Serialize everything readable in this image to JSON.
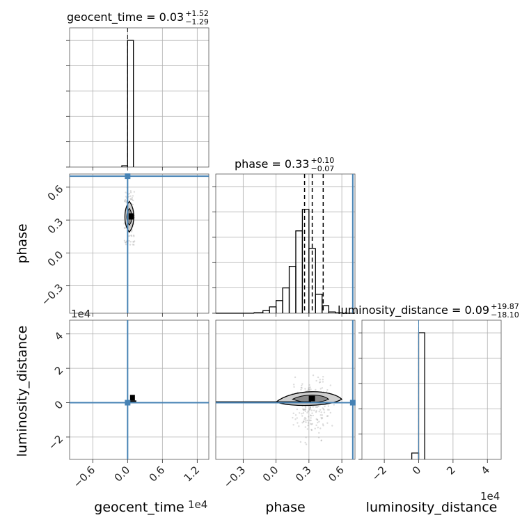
{
  "chart_data": {
    "type": "corner",
    "parameters": [
      "geocent_time",
      "phase",
      "luminosity_distance"
    ],
    "axis_labels": {
      "geocent_time": "geocent_time",
      "phase": "phase",
      "luminosity_distance": "luminosity_distance"
    },
    "titles": [
      {
        "param": "geocent_time",
        "text": "geocent_time = 0.03",
        "plus": "+1.52",
        "minus": "−1.29"
      },
      {
        "param": "phase",
        "text": "phase = 0.33",
        "plus": "+0.10",
        "minus": "−0.07"
      },
      {
        "param": "luminosity_distance",
        "text": "luminosity_distance = 0.09",
        "plus": "+19.87",
        "minus": "−18.10"
      }
    ],
    "offsets": {
      "geocent_time": "1e4",
      "luminosity_distance": "1e4"
    },
    "ranges": {
      "geocent_time": [
        -1.0,
        1.4
      ],
      "phase": [
        -0.55,
        0.72
      ],
      "luminosity_distance": [
        -3.3,
        4.8
      ]
    },
    "ticks": {
      "geocent_time": [
        -0.6,
        0.0,
        0.6,
        1.2
      ],
      "phase": [
        -0.3,
        0.0,
        0.3,
        0.6
      ],
      "luminosity_distance": [
        -2,
        0,
        2,
        4
      ]
    },
    "tick_labels": {
      "geocent_time": [
        "−0.6",
        "0.0",
        "0.6",
        "1.2"
      ],
      "phase": [
        "−0.3",
        "0.0",
        "0.3",
        "0.6"
      ],
      "luminosity_distance": [
        "−2",
        "0",
        "2",
        "4"
      ]
    },
    "truths": {
      "geocent_time": 0.0,
      "phase": 0.7,
      "luminosity_distance": 0.0
    },
    "quantiles": {
      "phase": [
        0.26,
        0.33,
        0.43
      ]
    },
    "hist_geocent_time": {
      "edges": [
        -0.1,
        0.0,
        0.1
      ],
      "heights": [
        0.01,
        1.0
      ]
    },
    "hist_phase": {
      "edges": [
        -0.55,
        -0.2,
        -0.12,
        -0.06,
        0.0,
        0.06,
        0.12,
        0.18,
        0.24,
        0.3,
        0.36,
        0.42,
        0.48,
        0.54,
        0.6,
        0.72
      ],
      "heights": [
        0.0,
        0.005,
        0.02,
        0.05,
        0.1,
        0.2,
        0.37,
        0.65,
        0.82,
        0.51,
        0.15,
        0.06,
        0.01,
        0.003,
        0.0
      ]
    },
    "hist_luminosity_distance": {
      "edges": [
        -0.4,
        0.0,
        0.35
      ],
      "heights": [
        0.05,
        1.0
      ]
    },
    "grid": true
  }
}
